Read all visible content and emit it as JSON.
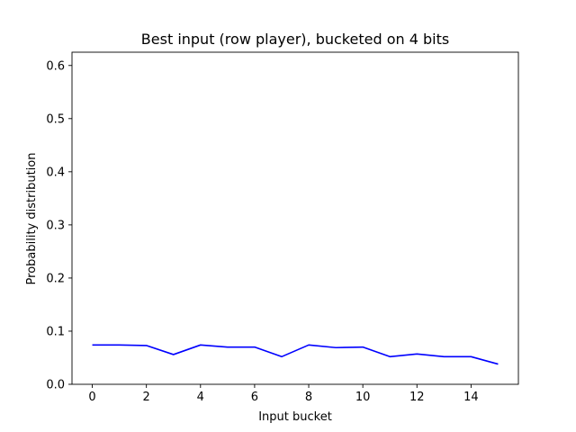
{
  "chart_data": {
    "type": "line",
    "title": "Best input (row player), bucketed on 4 bits",
    "xlabel": "Input bucket",
    "ylabel": "Probability distribution",
    "xlim": [
      -0.75,
      15.75
    ],
    "ylim": [
      0,
      0.625
    ],
    "xticks": [
      0,
      2,
      4,
      6,
      8,
      10,
      12,
      14
    ],
    "yticks": [
      0.0,
      0.1,
      0.2,
      0.3,
      0.4,
      0.5,
      0.6
    ],
    "grid": false,
    "series": [
      {
        "color": "#0000ff",
        "x": [
          0,
          1,
          2,
          3,
          4,
          5,
          6,
          7,
          8,
          9,
          10,
          11,
          12,
          13,
          14,
          15
        ],
        "values": [
          0.074,
          0.074,
          0.073,
          0.056,
          0.074,
          0.07,
          0.07,
          0.052,
          0.074,
          0.069,
          0.07,
          0.052,
          0.057,
          0.052,
          0.052,
          0.038
        ]
      }
    ]
  }
}
